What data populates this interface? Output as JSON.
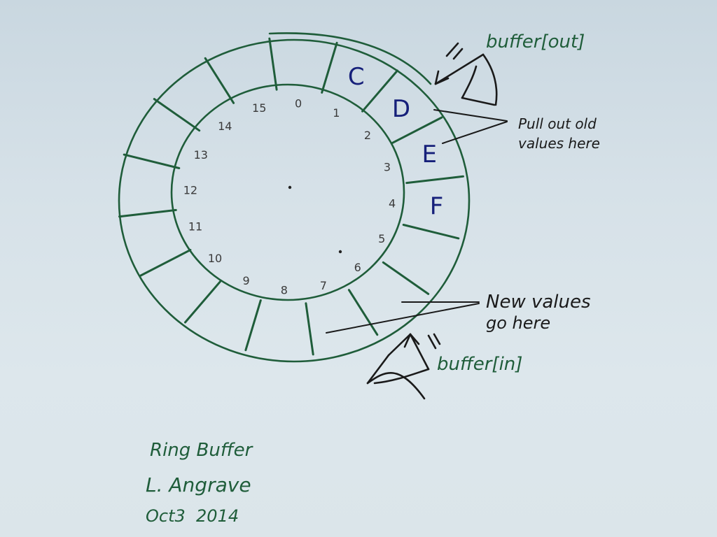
{
  "diagram": {
    "slot_indices": [
      "0",
      "1",
      "2",
      "3",
      "4",
      "5",
      "6",
      "7",
      "8",
      "9",
      "10",
      "11",
      "12",
      "13",
      "14",
      "15"
    ],
    "slot_values": [
      {
        "index": 1,
        "value": "C"
      },
      {
        "index": 2,
        "value": "D"
      },
      {
        "index": 3,
        "value": "E"
      },
      {
        "index": 4,
        "value": "F"
      }
    ],
    "out_pointer_label": "buffer[out]",
    "in_pointer_label": "buffer[in]",
    "pull_note_line1": "Pull out old",
    "pull_note_line2": "values here",
    "new_note_line1": "New values",
    "new_note_line2": "go here",
    "title": "Ring Buffer",
    "author": "L. Angrave",
    "date": "Oct3  2014"
  },
  "colors": {
    "green_ink": "#1f5d3a",
    "black_ink": "#1a1a1a",
    "blue_ink": "#16207a",
    "pencil": "#3a3a3a",
    "paper": "#d6e1e8"
  }
}
